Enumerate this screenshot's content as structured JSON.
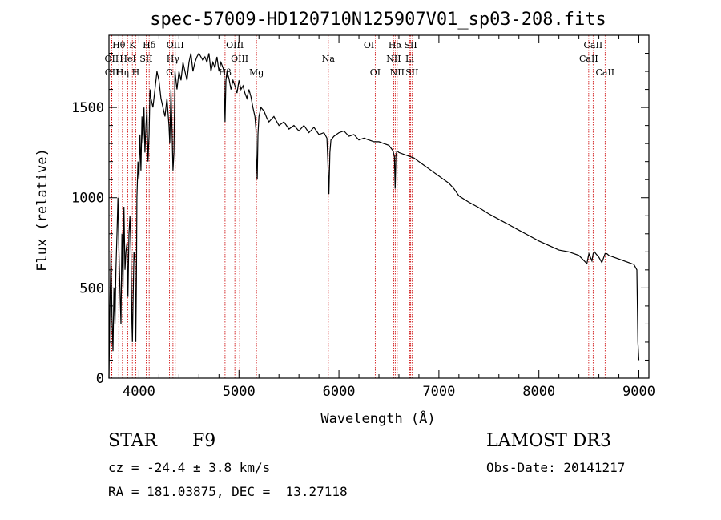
{
  "chart_data": {
    "type": "line",
    "title": "spec-57009-HD120710N125907V01_sp03-208.fits",
    "xlabel": "Wavelength (Å)",
    "ylabel": "Flux (relative)",
    "xlim": [
      3700,
      9100
    ],
    "ylim": [
      0,
      1900
    ],
    "xticks": [
      4000,
      5000,
      6000,
      7000,
      8000,
      9000
    ],
    "yticks": [
      0,
      500,
      1000,
      1500
    ],
    "grid": false,
    "series": [
      {
        "x": [
          3700,
          3710,
          3720,
          3730,
          3740,
          3750,
          3760,
          3770,
          3780,
          3790,
          3800,
          3810,
          3820,
          3830,
          3840,
          3850,
          3860,
          3870,
          3880,
          3890,
          3900,
          3910,
          3920,
          3930,
          3935,
          3940,
          3950,
          3960,
          3968,
          3975,
          3980,
          3990,
          4000,
          4010,
          4020,
          4030,
          4040,
          4050,
          4060,
          4070,
          4080,
          4090,
          4101,
          4110,
          4120,
          4140,
          4160,
          4180,
          4200,
          4220,
          4240,
          4260,
          4280,
          4300,
          4308,
          4320,
          4330,
          4340,
          4350,
          4360,
          4380,
          4400,
          4420,
          4440,
          4460,
          4480,
          4500,
          4520,
          4540,
          4560,
          4580,
          4600,
          4620,
          4640,
          4660,
          4680,
          4700,
          4720,
          4740,
          4760,
          4780,
          4800,
          4820,
          4840,
          4850,
          4861,
          4870,
          4880,
          4900,
          4920,
          4940,
          4960,
          4980,
          5000,
          5020,
          5040,
          5060,
          5080,
          5100,
          5120,
          5140,
          5160,
          5170,
          5175,
          5183,
          5190,
          5200,
          5220,
          5250,
          5280,
          5300,
          5350,
          5400,
          5450,
          5500,
          5550,
          5600,
          5650,
          5700,
          5750,
          5800,
          5850,
          5880,
          5890,
          5900,
          5910,
          5920,
          5950,
          6000,
          6050,
          6100,
          6150,
          6200,
          6250,
          6300,
          6350,
          6400,
          6450,
          6500,
          6540,
          6555,
          6563,
          6570,
          6580,
          6600,
          6650,
          6700,
          6750,
          6800,
          6850,
          6900,
          6950,
          7000,
          7050,
          7100,
          7150,
          7200,
          7300,
          7400,
          7500,
          7600,
          7700,
          7800,
          7900,
          8000,
          8100,
          8200,
          8300,
          8400,
          8480,
          8500,
          8530,
          8542,
          8555,
          8570,
          8600,
          8630,
          8662,
          8680,
          8700,
          8750,
          8800,
          8850,
          8900,
          8950,
          8980,
          8990,
          9000
        ],
        "values": [
          0,
          400,
          700,
          350,
          150,
          500,
          300,
          600,
          800,
          1000,
          700,
          500,
          300,
          800,
          500,
          950,
          600,
          700,
          750,
          450,
          800,
          900,
          700,
          300,
          200,
          400,
          700,
          650,
          200,
          550,
          1000,
          1200,
          1100,
          1350,
          1150,
          1450,
          1300,
          1500,
          1250,
          1400,
          1500,
          1200,
          1350,
          1600,
          1550,
          1500,
          1600,
          1700,
          1650,
          1550,
          1500,
          1450,
          1550,
          1400,
          1300,
          1600,
          1400,
          1150,
          1250,
          1700,
          1600,
          1700,
          1650,
          1750,
          1700,
          1650,
          1750,
          1800,
          1700,
          1750,
          1780,
          1800,
          1780,
          1760,
          1780,
          1750,
          1800,
          1700,
          1750,
          1720,
          1780,
          1700,
          1750,
          1720,
          1700,
          1420,
          1650,
          1700,
          1660,
          1600,
          1650,
          1620,
          1580,
          1650,
          1600,
          1620,
          1580,
          1550,
          1600,
          1560,
          1500,
          1450,
          1380,
          1230,
          1100,
          1350,
          1450,
          1500,
          1480,
          1440,
          1420,
          1450,
          1400,
          1420,
          1380,
          1400,
          1370,
          1400,
          1360,
          1390,
          1350,
          1360,
          1330,
          1200,
          1020,
          1250,
          1320,
          1340,
          1360,
          1370,
          1340,
          1350,
          1320,
          1330,
          1320,
          1310,
          1310,
          1300,
          1290,
          1260,
          1230,
          1050,
          1230,
          1260,
          1250,
          1240,
          1230,
          1220,
          1200,
          1180,
          1160,
          1140,
          1120,
          1100,
          1080,
          1050,
          1010,
          975,
          945,
          910,
          880,
          850,
          820,
          790,
          760,
          735,
          710,
          700,
          680,
          635,
          690,
          650,
          690,
          700,
          690,
          670,
          640,
          690,
          690,
          680,
          670,
          660,
          650,
          640,
          630,
          600,
          200,
          100
        ]
      }
    ],
    "line_ids": [
      {
        "label": "Hθ",
        "wavelength": 3798,
        "row": 0
      },
      {
        "label": "OII",
        "wavelength": 3727,
        "row": 1
      },
      {
        "label": "OII",
        "wavelength": 3729,
        "row": 2
      },
      {
        "label": "K",
        "wavelength": 3934,
        "row": 0
      },
      {
        "label": "Hη",
        "wavelength": 3835,
        "row": 2
      },
      {
        "label": "HeI",
        "wavelength": 3889,
        "row": 1
      },
      {
        "label": "SII",
        "wavelength": 4072,
        "row": 1
      },
      {
        "label": "H",
        "wavelength": 3968,
        "row": 2
      },
      {
        "label": "Hδ",
        "wavelength": 4102,
        "row": 0
      },
      {
        "label": "OIII",
        "wavelength": 4363,
        "row": 0
      },
      {
        "label": "Hγ",
        "wavelength": 4340,
        "row": 1
      },
      {
        "label": "G",
        "wavelength": 4305,
        "row": 2
      },
      {
        "label": "Hβ",
        "wavelength": 4861,
        "row": 2
      },
      {
        "label": "OIII",
        "wavelength": 4959,
        "row": 0
      },
      {
        "label": "OIII",
        "wavelength": 5007,
        "row": 1
      },
      {
        "label": "Mg",
        "wavelength": 5175,
        "row": 2
      },
      {
        "label": "Na",
        "wavelength": 5894,
        "row": 1
      },
      {
        "label": "OI",
        "wavelength": 6300,
        "row": 0
      },
      {
        "label": "OI",
        "wavelength": 6363,
        "row": 2
      },
      {
        "label": "Hα",
        "wavelength": 6563,
        "row": 0
      },
      {
        "label": "NII",
        "wavelength": 6548,
        "row": 1
      },
      {
        "label": "NII",
        "wavelength": 6583,
        "row": 2
      },
      {
        "label": "SII",
        "wavelength": 6717,
        "row": 0
      },
      {
        "label": "Li",
        "wavelength": 6708,
        "row": 1
      },
      {
        "label": "SII",
        "wavelength": 6731,
        "row": 2
      },
      {
        "label": "CaII",
        "wavelength": 8542,
        "row": 0
      },
      {
        "label": "CaII",
        "wavelength": 8498,
        "row": 1
      },
      {
        "label": "CaII",
        "wavelength": 8662,
        "row": 2
      }
    ],
    "line_color": "#000000",
    "marker_color": "#cc0000"
  },
  "info": {
    "object_class": "STAR",
    "subclass": "F9",
    "survey": "LAMOST DR3",
    "velocity": "cz = -24.4 ± 3.8 km/s",
    "obs_date": "Obs-Date: 20141217",
    "coords": "RA = 181.03875, DEC =  13.27118"
  }
}
